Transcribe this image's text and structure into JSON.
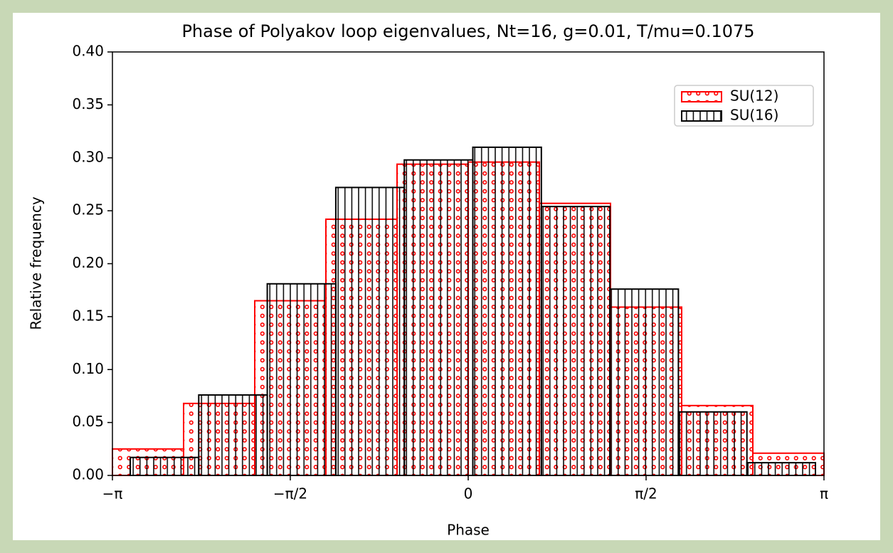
{
  "chart_data": {
    "type": "histogram",
    "title": "Phase of Polyakov loop eigenvalues, Nt=16, g=0.01, T/mu=0.1075",
    "xlabel": "Phase",
    "ylabel": "Relative frequency",
    "series": [
      {
        "name": "SU(12)",
        "color": "#ff0000",
        "hatch": "dots",
        "bins": [
          -3.14159,
          -2.51327,
          -1.88496,
          -1.25664,
          -0.62832,
          0,
          0.62832,
          1.25664,
          1.88496,
          2.51327,
          3.14159
        ],
        "values": [
          0.025,
          0.068,
          0.165,
          0.242,
          0.294,
          0.296,
          0.257,
          0.159,
          0.066,
          0.021
        ]
      },
      {
        "name": "SU(16)",
        "color": "#000000",
        "hatch": "vertical",
        "bins": [
          -2.9845,
          -2.3794,
          -1.7744,
          -1.1693,
          -0.5642,
          0.0408,
          0.6459,
          1.251,
          1.856,
          2.4611,
          3.0662
        ],
        "values": [
          0.017,
          0.076,
          0.181,
          0.272,
          0.298,
          0.31,
          0.254,
          0.176,
          0.06,
          0.012
        ]
      }
    ],
    "xlim": [
      -3.14159,
      3.14159
    ],
    "xticks": [
      {
        "value": -3.14159,
        "label": "−π"
      },
      {
        "value": -1.5708,
        "label": "−π/2"
      },
      0,
      {
        "value": 1.5708,
        "label": "π/2"
      },
      {
        "value": 3.14159,
        "label": "π"
      }
    ],
    "ylim": [
      0,
      0.4
    ],
    "yticks": [
      {
        "value": 0,
        "label": "0.00"
      },
      {
        "value": 0.05,
        "label": "0.05"
      },
      {
        "value": 0.1,
        "label": "0.10"
      },
      {
        "value": 0.15,
        "label": "0.15"
      },
      {
        "value": 0.2,
        "label": "0.20"
      },
      {
        "value": 0.25,
        "label": "0.25"
      },
      {
        "value": 0.3,
        "label": "0.30"
      },
      {
        "value": 0.35,
        "label": "0.35"
      },
      {
        "value": 0.4,
        "label": "0.40"
      }
    ],
    "legend": "upper right"
  }
}
